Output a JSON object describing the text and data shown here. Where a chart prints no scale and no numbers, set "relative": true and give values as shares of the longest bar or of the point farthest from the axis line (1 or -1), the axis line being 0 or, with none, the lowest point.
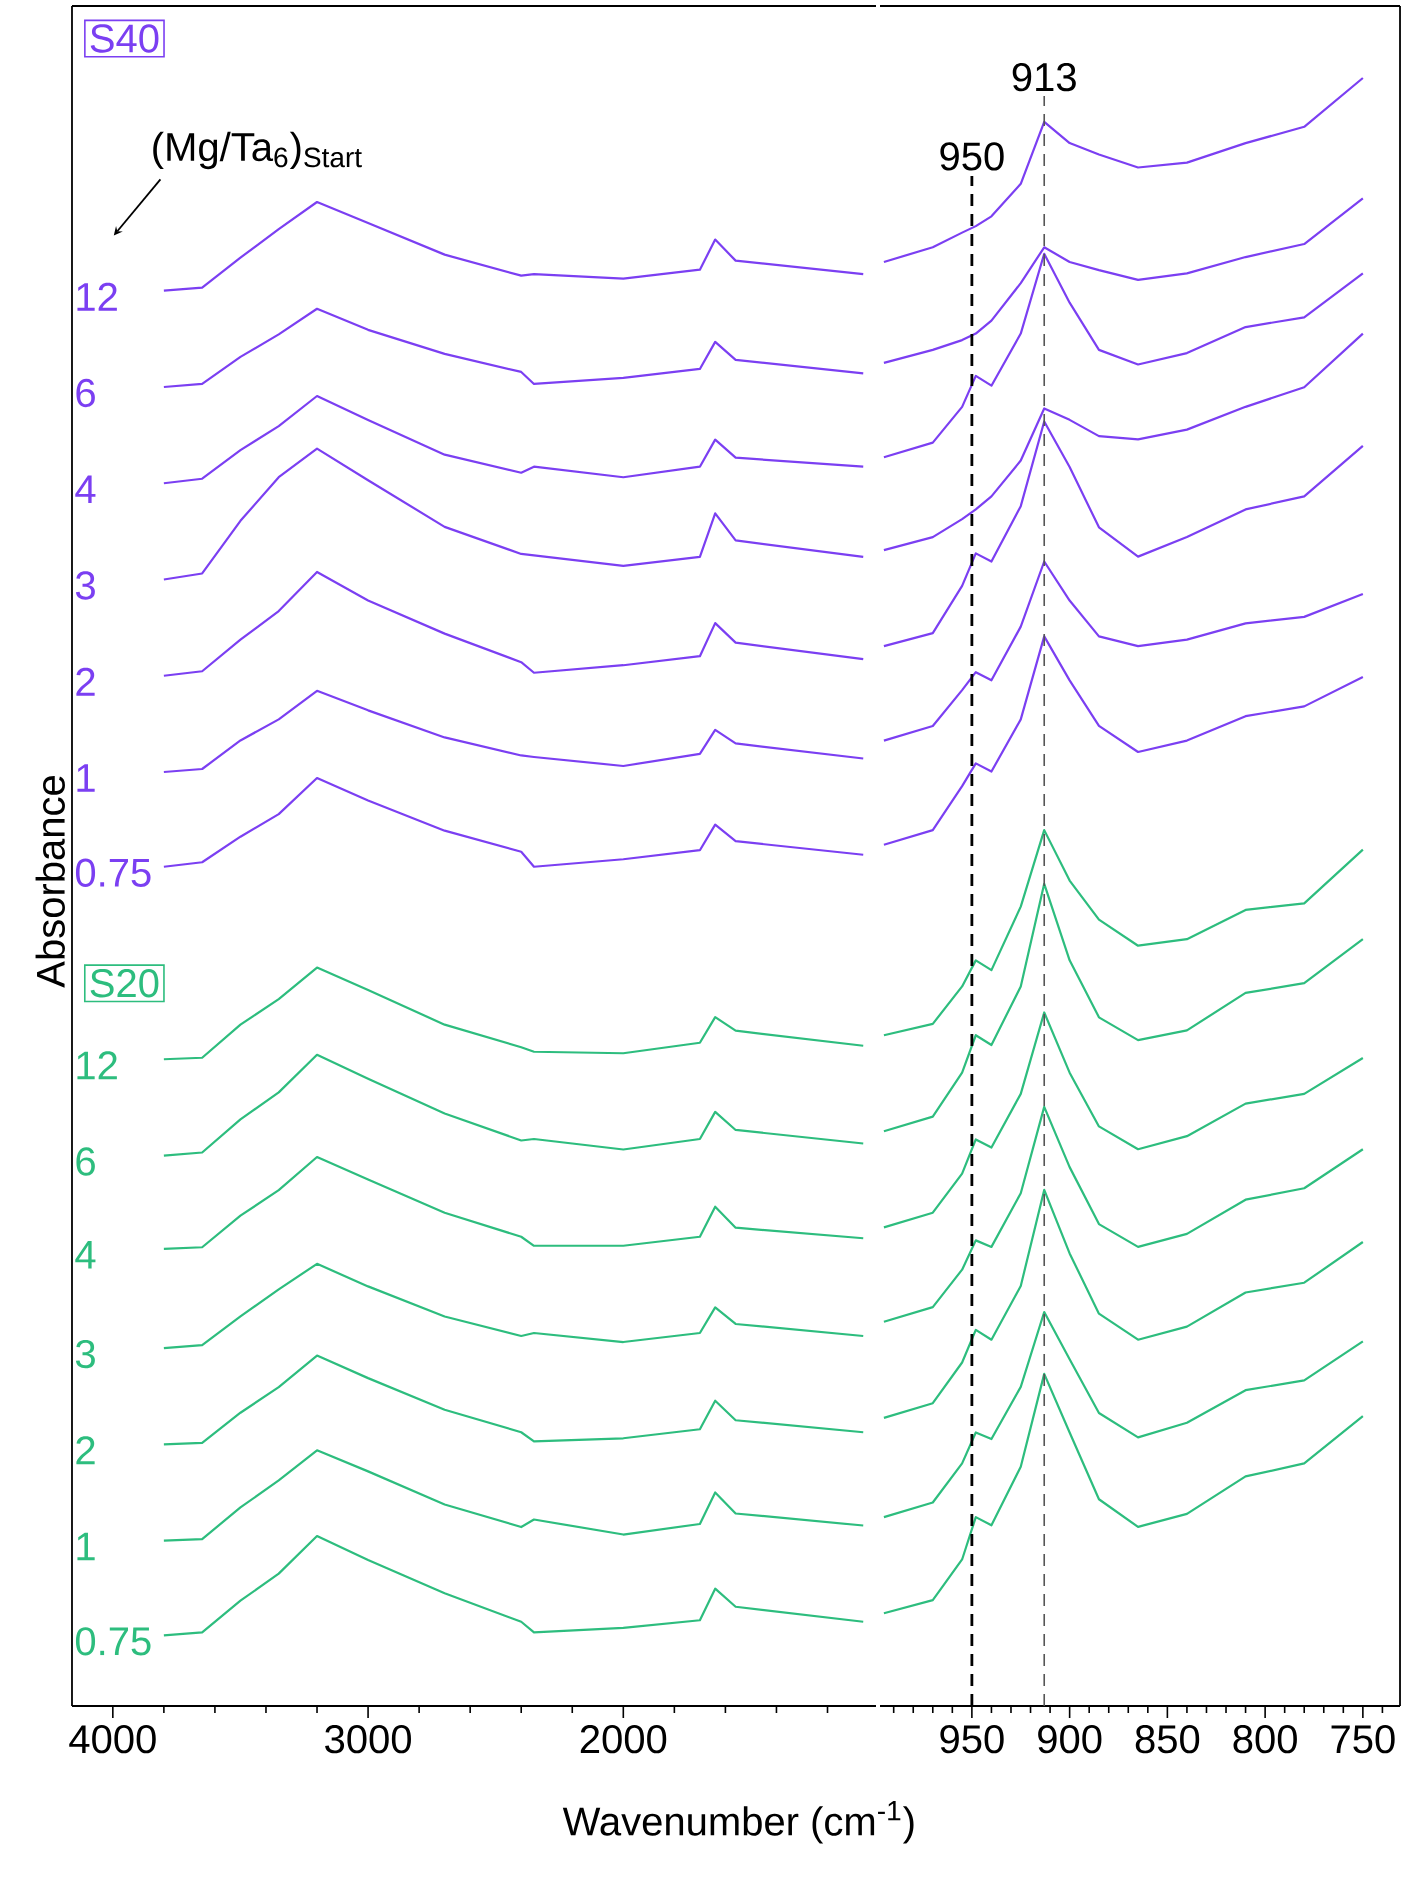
{
  "chart_data": [
    {
      "type": "line",
      "relative": true,
      "xlabel": "Wavenumber (cm$^{-1}$)",
      "ylabel": "Absorbance",
      "annotations": [
        "S40",
        "(Mg/Ta$_{6}$)$_{Start}$",
        "S20"
      ],
      "xlim": [
        4160,
        1010
      ],
      "xticks": [
        4000,
        3000,
        2000,
        {
          "value": 3800,
          "label": null
        },
        {
          "value": 3600,
          "label": null
        },
        {
          "value": 3400,
          "label": null
        },
        {
          "value": 3200,
          "label": null
        },
        {
          "value": 2800,
          "label": null
        },
        {
          "value": 2600,
          "label": null
        },
        {
          "value": 2400,
          "label": null
        },
        {
          "value": 2200,
          "label": null
        },
        {
          "value": 1800,
          "label": null
        },
        {
          "value": 1600,
          "label": null
        },
        {
          "value": 1400,
          "label": null
        },
        {
          "value": 1200,
          "label": null
        }
      ],
      "x": [
        3800,
        3650,
        3500,
        3350,
        3200,
        3000,
        2700,
        2400,
        2350,
        2000,
        1700,
        1640,
        1560,
        1060
      ],
      "series": [
        {
          "name": "12",
          "color": "#7b3ff2",
          "values": [
            0.941,
            0.943,
            0.963,
            0.982,
            1.0,
            0.986,
            0.965,
            0.951,
            0.952,
            0.949,
            0.955,
            0.975,
            0.961,
            0.952
          ]
        },
        {
          "name": "6",
          "color": "#7b3ff2",
          "values": [
            0.877,
            0.879,
            0.897,
            0.912,
            0.929,
            0.915,
            0.899,
            0.887,
            0.879,
            0.883,
            0.889,
            0.907,
            0.895,
            0.886
          ]
        },
        {
          "name": "4",
          "color": "#7b3ff2",
          "values": [
            0.813,
            0.816,
            0.835,
            0.851,
            0.871,
            0.855,
            0.832,
            0.82,
            0.824,
            0.817,
            0.824,
            0.842,
            0.83,
            0.824
          ]
        },
        {
          "name": "3",
          "color": "#7b3ff2",
          "values": [
            0.749,
            0.753,
            0.788,
            0.817,
            0.836,
            0.815,
            0.784,
            0.766,
            0.765,
            0.758,
            0.764,
            0.793,
            0.775,
            0.764
          ]
        },
        {
          "name": "2",
          "color": "#7b3ff2",
          "values": [
            0.685,
            0.688,
            0.709,
            0.728,
            0.754,
            0.735,
            0.713,
            0.694,
            0.687,
            0.692,
            0.698,
            0.72,
            0.707,
            0.696
          ]
        },
        {
          "name": "1",
          "color": "#7b3ff2",
          "values": [
            0.621,
            0.623,
            0.642,
            0.656,
            0.675,
            0.662,
            0.644,
            0.632,
            0.631,
            0.625,
            0.633,
            0.649,
            0.64,
            0.63
          ]
        },
        {
          "name": "0.75",
          "color": "#7b3ff2",
          "values": [
            0.558,
            0.561,
            0.578,
            0.593,
            0.617,
            0.602,
            0.582,
            0.568,
            0.558,
            0.563,
            0.569,
            0.586,
            0.575,
            0.566
          ]
        },
        {
          "name": "12",
          "color": "#2dbd7e",
          "values": [
            0.43,
            0.431,
            0.453,
            0.47,
            0.491,
            0.476,
            0.453,
            0.438,
            0.435,
            0.434,
            0.441,
            0.458,
            0.449,
            0.439
          ]
        },
        {
          "name": "6",
          "color": "#2dbd7e",
          "values": [
            0.366,
            0.368,
            0.39,
            0.408,
            0.433,
            0.417,
            0.394,
            0.376,
            0.377,
            0.37,
            0.377,
            0.395,
            0.383,
            0.374
          ]
        },
        {
          "name": "4",
          "color": "#2dbd7e",
          "values": [
            0.304,
            0.305,
            0.326,
            0.343,
            0.365,
            0.35,
            0.328,
            0.312,
            0.306,
            0.306,
            0.312,
            0.332,
            0.318,
            0.311
          ]
        },
        {
          "name": "3",
          "color": "#2dbd7e",
          "values": [
            0.238,
            0.24,
            0.259,
            0.277,
            0.294,
            0.279,
            0.259,
            0.246,
            0.248,
            0.242,
            0.248,
            0.265,
            0.254,
            0.246
          ]
        },
        {
          "name": "2",
          "color": "#2dbd7e",
          "values": [
            0.174,
            0.175,
            0.195,
            0.212,
            0.233,
            0.218,
            0.197,
            0.182,
            0.176,
            0.178,
            0.184,
            0.203,
            0.19,
            0.182
          ]
        },
        {
          "name": "1",
          "color": "#2dbd7e",
          "values": [
            0.11,
            0.111,
            0.132,
            0.15,
            0.17,
            0.156,
            0.134,
            0.119,
            0.124,
            0.114,
            0.121,
            0.142,
            0.128,
            0.12
          ]
        },
        {
          "name": "0.75",
          "color": "#2dbd7e",
          "values": [
            0.047,
            0.049,
            0.07,
            0.088,
            0.113,
            0.097,
            0.075,
            0.056,
            0.049,
            0.052,
            0.057,
            0.078,
            0.066,
            0.056
          ]
        }
      ]
    },
    {
      "type": "line",
      "relative": true,
      "xlim": [
        997,
        731
      ],
      "xticks": [
        950,
        900,
        850,
        800,
        750,
        {
          "value": 990,
          "label": null
        },
        {
          "value": 980,
          "label": null
        },
        {
          "value": 970,
          "label": null
        },
        {
          "value": 960,
          "label": null
        },
        {
          "value": 940,
          "label": null
        },
        {
          "value": 930,
          "label": null
        },
        {
          "value": 920,
          "label": null
        },
        {
          "value": 910,
          "label": null
        },
        {
          "value": 890,
          "label": null
        },
        {
          "value": 880,
          "label": null
        },
        {
          "value": 870,
          "label": null
        },
        {
          "value": 860,
          "label": null
        },
        {
          "value": 840,
          "label": null
        },
        {
          "value": 830,
          "label": null
        },
        {
          "value": 820,
          "label": null
        },
        {
          "value": 810,
          "label": null
        },
        {
          "value": 790,
          "label": null
        },
        {
          "value": 780,
          "label": null
        },
        {
          "value": 770,
          "label": null
        },
        {
          "value": 760,
          "label": null
        },
        {
          "value": 740,
          "label": null
        }
      ],
      "ref_lines": [
        {
          "axis": "x",
          "value": 950,
          "label": "950",
          "color": "#000000",
          "line_style": "dashed"
        },
        {
          "axis": "x",
          "value": 913,
          "label": "913",
          "color": "#555555",
          "line_style": "dashed"
        }
      ],
      "x": [
        995,
        970,
        955,
        948,
        940,
        925,
        913,
        900,
        885,
        865,
        840,
        810,
        780,
        750
      ],
      "series": [
        {
          "color": "#7b3ff2",
          "values": [
            0.887,
            0.896,
            0.905,
            0.909,
            0.915,
            0.935,
            0.973,
            0.96,
            0.953,
            0.945,
            0.948,
            0.96,
            0.97,
            1.0
          ]
        },
        {
          "color": "#7b3ff2",
          "values": [
            0.825,
            0.833,
            0.839,
            0.843,
            0.851,
            0.874,
            0.896,
            0.887,
            0.882,
            0.876,
            0.88,
            0.89,
            0.898,
            0.926
          ]
        },
        {
          "color": "#7b3ff2",
          "values": [
            0.767,
            0.776,
            0.798,
            0.817,
            0.811,
            0.843,
            0.892,
            0.862,
            0.833,
            0.824,
            0.831,
            0.847,
            0.853,
            0.88
          ]
        },
        {
          "color": "#7b3ff2",
          "values": [
            0.71,
            0.718,
            0.729,
            0.735,
            0.743,
            0.765,
            0.797,
            0.79,
            0.78,
            0.778,
            0.784,
            0.798,
            0.81,
            0.843
          ]
        },
        {
          "color": "#7b3ff2",
          "values": [
            0.651,
            0.659,
            0.688,
            0.708,
            0.703,
            0.737,
            0.789,
            0.761,
            0.724,
            0.706,
            0.718,
            0.735,
            0.743,
            0.774
          ]
        },
        {
          "color": "#7b3ff2",
          "values": [
            0.593,
            0.602,
            0.624,
            0.635,
            0.63,
            0.663,
            0.703,
            0.679,
            0.657,
            0.651,
            0.655,
            0.665,
            0.669,
            0.683
          ]
        },
        {
          "color": "#7b3ff2",
          "values": [
            0.529,
            0.538,
            0.565,
            0.579,
            0.574,
            0.606,
            0.657,
            0.63,
            0.602,
            0.586,
            0.593,
            0.608,
            0.614,
            0.632
          ]
        },
        {
          "color": "#2dbd7e",
          "values": [
            0.412,
            0.419,
            0.442,
            0.458,
            0.452,
            0.491,
            0.538,
            0.507,
            0.483,
            0.467,
            0.471,
            0.489,
            0.493,
            0.526
          ]
        },
        {
          "color": "#2dbd7e",
          "values": [
            0.353,
            0.362,
            0.389,
            0.412,
            0.406,
            0.442,
            0.505,
            0.458,
            0.423,
            0.409,
            0.415,
            0.438,
            0.444,
            0.471
          ]
        },
        {
          "color": "#2dbd7e",
          "values": [
            0.294,
            0.303,
            0.327,
            0.348,
            0.343,
            0.376,
            0.426,
            0.389,
            0.356,
            0.342,
            0.35,
            0.37,
            0.376,
            0.398
          ]
        },
        {
          "color": "#2dbd7e",
          "values": [
            0.236,
            0.245,
            0.268,
            0.286,
            0.282,
            0.315,
            0.368,
            0.331,
            0.296,
            0.282,
            0.29,
            0.311,
            0.318,
            0.342
          ]
        },
        {
          "color": "#2dbd7e",
          "values": [
            0.177,
            0.186,
            0.211,
            0.231,
            0.225,
            0.258,
            0.317,
            0.278,
            0.241,
            0.225,
            0.233,
            0.254,
            0.26,
            0.285
          ]
        },
        {
          "color": "#2dbd7e",
          "values": [
            0.116,
            0.125,
            0.149,
            0.168,
            0.164,
            0.196,
            0.242,
            0.213,
            0.18,
            0.165,
            0.174,
            0.194,
            0.2,
            0.224
          ]
        },
        {
          "color": "#2dbd7e",
          "values": [
            0.057,
            0.065,
            0.09,
            0.116,
            0.111,
            0.147,
            0.204,
            0.168,
            0.127,
            0.11,
            0.118,
            0.141,
            0.149,
            0.178
          ]
        }
      ]
    }
  ]
}
